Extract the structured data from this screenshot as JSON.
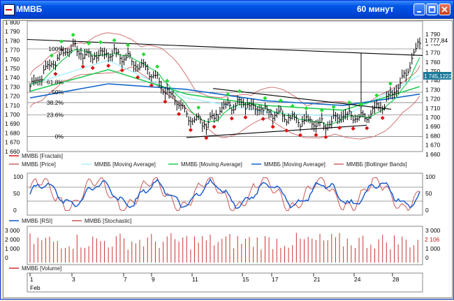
{
  "window": {
    "title": "ММВБ",
    "period": "60 минут"
  },
  "colors": {
    "titlebar": "#0055e5",
    "price_bars": "#000000",
    "fractal_up": "#22dd33",
    "fractal_down": "#dd1111",
    "ma_fast": "#aaeeff",
    "ma_mid": "#22cc55",
    "ma_slow": "#1166cc",
    "bollinger": "#cc6666",
    "rsi": "#1155cc",
    "stochastic": "#cc5555",
    "volume": "#cc3333"
  },
  "price_panel": {
    "y_axis_left": [
      "1 800",
      "1 790",
      "1 780",
      "1 770",
      "1 760",
      "1 750",
      "1 740",
      "1 730",
      "1 720",
      "1 710",
      "1 700",
      "1 690",
      "1 680",
      "1 670",
      "1 660"
    ],
    "y_axis_right": [
      "1 790",
      "1 780",
      "1 770",
      "1 760",
      "1 750",
      "1 740",
      "1 730",
      "1 720",
      "1 710",
      "1 700",
      "1 690",
      "1 680",
      "1 670",
      "1 660"
    ],
    "price_tag_top": "1 777,84",
    "price_tag_mid": "1 745,1222",
    "fib_levels": [
      "100%",
      "61.8%",
      "50%",
      "38.2%",
      "23.6%",
      "0%"
    ],
    "legend": [
      {
        "label": "ММВБ [Fractals]",
        "icon": "fractals-line"
      },
      {
        "label": "ММВБ [Price]",
        "icon": "price-line"
      },
      {
        "label": "ММВБ [Moving Average]",
        "icon": "ma-fast-line"
      },
      {
        "label": "ММВБ [Moving Average]",
        "icon": "ma-mid-line"
      },
      {
        "label": "ММВБ [Moving Average]",
        "icon": "ma-slow-line"
      },
      {
        "label": "ММВБ [Bollinger Bands]",
        "icon": "bollinger-line"
      }
    ]
  },
  "osc_panel": {
    "y_axis": [
      "100",
      "50",
      "0"
    ],
    "legend": [
      {
        "label": "ММВБ [RSI]"
      },
      {
        "label": "ММВБ [Stochastic]"
      }
    ]
  },
  "volume_panel": {
    "y_axis": [
      "3 000",
      "2 000",
      "1 000",
      "0"
    ],
    "last_volume_tag": "2 106",
    "legend": [
      {
        "label": "ММВБ [Volume]"
      }
    ]
  },
  "x_axis": {
    "days": [
      "1",
      "3",
      "7",
      "9",
      "11",
      "15",
      "17",
      "21",
      "24",
      "28"
    ],
    "month": "Feb"
  },
  "chart_data": {
    "type": "line",
    "ylim": [
      1660,
      1800
    ],
    "series": [
      {
        "name": "ММВБ [Price]",
        "x": [
          0,
          10,
          20,
          30,
          40,
          50,
          60,
          70,
          80,
          90,
          100,
          110,
          120,
          130,
          140,
          150,
          160,
          170,
          180,
          190,
          199
        ],
        "values": [
          1730,
          1752,
          1772,
          1762,
          1766,
          1760,
          1748,
          1725,
          1700,
          1690,
          1710,
          1712,
          1705,
          1700,
          1693,
          1690,
          1700,
          1695,
          1710,
          1735,
          1778
        ]
      },
      {
        "name": "ММВБ [Moving Average]",
        "x": [
          0,
          40,
          80,
          120,
          160,
          199
        ],
        "values": [
          1732,
          1758,
          1718,
          1703,
          1698,
          1742
        ]
      },
      {
        "name": "ММВБ [Moving Average]",
        "x": [
          0,
          40,
          80,
          120,
          160,
          199
        ],
        "values": [
          1725,
          1748,
          1722,
          1710,
          1705,
          1730
        ]
      },
      {
        "name": "ММВБ [Moving Average]",
        "x": [
          0,
          40,
          80,
          120,
          160,
          199
        ],
        "values": [
          1718,
          1733,
          1727,
          1715,
          1710,
          1722
        ]
      }
    ],
    "fib_retracement": {
      "100%": 1770,
      "61.8%": 1735,
      "50%": 1724,
      "38.2%": 1713,
      "23.6%": 1700,
      "0%": 1677
    },
    "rsi_ylim": [
      0,
      100
    ],
    "volume_ylim": [
      0,
      3000
    ],
    "last_volume": 2106
  }
}
